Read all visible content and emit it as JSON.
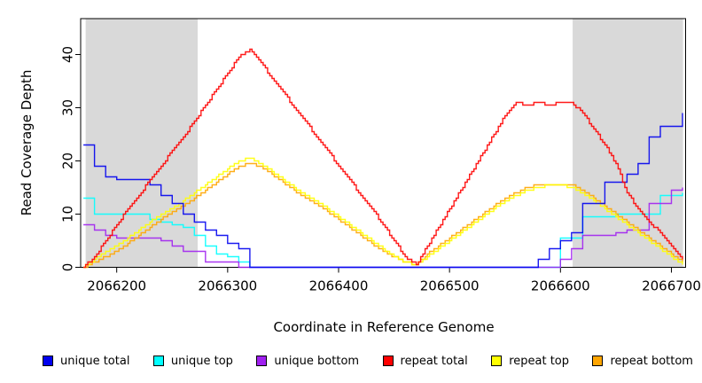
{
  "chart_data": {
    "type": "line",
    "title": "",
    "xlabel": "Coordinate in Reference Genome",
    "ylabel": "Read Coverage Depth",
    "xlim": [
      2066167.5,
      2066712.8
    ],
    "ylim": [
      0,
      46.75
    ],
    "x_ticks": [
      2066200,
      2066300,
      2066400,
      2066500,
      2066600,
      2066700
    ],
    "y_ticks": [
      0,
      10,
      20,
      30,
      40
    ],
    "grid": false,
    "background": "#ffffff",
    "shade_color": "#d9d9d9",
    "shaded_regions": [
      {
        "from": 2066172,
        "to": 2066273
      },
      {
        "from": 2066611,
        "to": 2066710.5
      }
    ],
    "x": [
      2066170,
      2066180,
      2066190,
      2066200,
      2066210,
      2066220,
      2066230,
      2066240,
      2066250,
      2066260,
      2066270,
      2066280,
      2066290,
      2066300,
      2066310,
      2066320,
      2066330,
      2066340,
      2066350,
      2066360,
      2066370,
      2066380,
      2066390,
      2066400,
      2066410,
      2066420,
      2066430,
      2066440,
      2066450,
      2066460,
      2066470,
      2066480,
      2066490,
      2066500,
      2066510,
      2066520,
      2066530,
      2066540,
      2066550,
      2066560,
      2066570,
      2066580,
      2066590,
      2066600,
      2066610,
      2066620,
      2066630,
      2066640,
      2066650,
      2066660,
      2066670,
      2066680,
      2066690,
      2066700,
      2066710
    ],
    "series": [
      {
        "name": "unique top",
        "color": "#00FFFF",
        "style": "step",
        "values": [
          13,
          10,
          10,
          10,
          10,
          10,
          9,
          8.5,
          8,
          7.5,
          6,
          4,
          2.5,
          2,
          1,
          0,
          0,
          0,
          0,
          0,
          0,
          0,
          0,
          0,
          0,
          0,
          0,
          0,
          0,
          0,
          0,
          0,
          0,
          0,
          0,
          0,
          0,
          0,
          0,
          0,
          0,
          0,
          0,
          5.5,
          5.5,
          9.5,
          9.5,
          9.5,
          10,
          10,
          10,
          10,
          13.5,
          13.5,
          14
        ]
      },
      {
        "name": "unique bottom",
        "color": "#A020F0",
        "style": "step",
        "values": [
          8,
          7,
          6,
          5.5,
          5.5,
          5.5,
          5.5,
          5,
          4,
          3,
          3,
          1,
          1,
          1,
          0,
          0,
          0,
          0,
          0,
          0,
          0,
          0,
          0,
          0,
          0,
          0,
          0,
          0,
          0,
          0,
          0,
          0,
          0,
          0,
          0,
          0,
          0,
          0,
          0,
          0,
          0,
          0,
          0,
          1.5,
          3.5,
          6,
          6,
          6,
          6.5,
          7,
          7,
          12,
          12,
          14.5,
          15
        ]
      },
      {
        "name": "repeat bottom",
        "color": "#FFA500",
        "style": "line",
        "values": [
          0,
          1,
          2,
          3,
          4.5,
          6,
          7.5,
          9,
          10.5,
          11.5,
          13,
          14.5,
          16,
          17.5,
          19,
          19.5,
          19,
          17.5,
          16,
          14.5,
          13,
          12,
          10.5,
          9,
          7.5,
          6,
          4.5,
          3,
          2,
          1,
          0.5,
          2.5,
          4,
          5.5,
          7,
          8.5,
          10,
          11.5,
          13,
          14,
          15,
          15.5,
          15.5,
          15.5,
          15.5,
          14.5,
          13,
          11.5,
          10,
          8.5,
          7,
          5.5,
          4,
          2.5,
          1
        ]
      },
      {
        "name": "repeat top",
        "color": "#FFFF00",
        "style": "line",
        "values": [
          0,
          1.5,
          3,
          4,
          5.5,
          7,
          8.5,
          10,
          11,
          12.5,
          14,
          15.5,
          17,
          18.5,
          20,
          20.5,
          19.5,
          18,
          16.5,
          15,
          13.5,
          12.5,
          11,
          9.5,
          8,
          6.5,
          5,
          3.5,
          2,
          1,
          0.5,
          2,
          3.5,
          5,
          6.5,
          8,
          9.5,
          11,
          12.5,
          13.5,
          14.5,
          15,
          15.5,
          15.5,
          15,
          14,
          12.5,
          11,
          9.5,
          8,
          6.5,
          5,
          3.5,
          2,
          0.5
        ]
      },
      {
        "name": "unique total",
        "color": "#0000EE",
        "style": "step",
        "values": [
          23,
          19,
          17,
          16.5,
          16.5,
          16.5,
          15.5,
          13.5,
          12,
          10,
          8.5,
          7,
          6,
          4.5,
          3.5,
          0,
          0,
          0,
          0,
          0,
          0,
          0,
          0,
          0,
          0,
          0,
          0,
          0,
          0,
          0,
          0,
          0,
          0,
          0,
          0,
          0,
          0,
          0,
          0,
          0,
          0,
          1.5,
          3.5,
          5,
          6.5,
          12,
          12,
          16,
          16,
          17.5,
          19.5,
          24.5,
          26.5,
          26.5,
          29
        ]
      },
      {
        "name": "repeat total",
        "color": "#FF0000",
        "style": "line",
        "values": [
          0,
          2,
          5,
          8,
          11,
          13.5,
          16.5,
          19,
          22,
          24.5,
          27.5,
          30.5,
          33.5,
          36.5,
          39.5,
          41,
          38.5,
          35.5,
          33,
          30,
          27.5,
          24.5,
          22,
          19,
          16.5,
          13.5,
          11,
          8,
          5,
          2,
          0.5,
          4,
          7.5,
          11,
          14.5,
          18,
          21.5,
          25,
          28.5,
          31,
          30.5,
          31,
          30.5,
          31,
          31,
          29,
          26,
          23,
          19.5,
          14,
          11,
          8.5,
          6.5,
          4,
          1.5
        ]
      }
    ],
    "legend": [
      {
        "label": "unique total",
        "color": "#0000EE"
      },
      {
        "label": "unique top",
        "color": "#00FFFF"
      },
      {
        "label": "unique bottom",
        "color": "#A020F0"
      },
      {
        "label": "repeat total",
        "color": "#FF0000"
      },
      {
        "label": "repeat top",
        "color": "#FFFF00"
      },
      {
        "label": "repeat bottom",
        "color": "#FFA500"
      }
    ],
    "legend_position": "bottom"
  }
}
